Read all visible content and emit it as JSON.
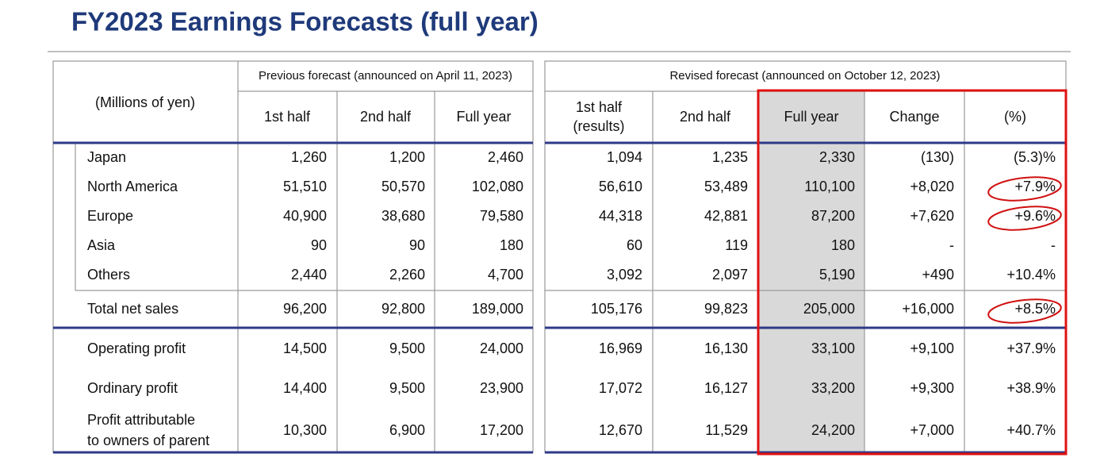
{
  "header": {
    "title": "FY2023 Earnings Forecasts (full year)"
  },
  "table": {
    "unit_label": "(Millions of yen)",
    "previous_label": "Previous forecast (announced on April 11, 2023)",
    "revised_label": "Revised forecast (announced on October 12, 2023)",
    "columns": [
      [
        "1st half"
      ],
      [
        "2nd half"
      ],
      [
        "Full year"
      ],
      [
        "1st half",
        "(results)"
      ],
      [
        "2nd half"
      ],
      [
        "Full year"
      ],
      [
        "Change"
      ],
      [
        "(%)"
      ]
    ],
    "rows": [
      {
        "label": [
          "Japan"
        ],
        "cells": [
          "1,260",
          "1,200",
          "2,460",
          "1,094",
          "1,235",
          "2,330",
          "(130)",
          "(5.3)%"
        ]
      },
      {
        "label": [
          "North America"
        ],
        "cells": [
          "51,510",
          "50,570",
          "102,080",
          "56,610",
          "53,489",
          "110,100",
          "+8,020",
          "+7.9%"
        ]
      },
      {
        "label": [
          "Europe"
        ],
        "cells": [
          "40,900",
          "38,680",
          "79,580",
          "44,318",
          "42,881",
          "87,200",
          "+7,620",
          "+9.6%"
        ]
      },
      {
        "label": [
          "Asia"
        ],
        "cells": [
          "90",
          "90",
          "180",
          "60",
          "119",
          "180",
          "-",
          "-"
        ]
      },
      {
        "label": [
          "Others"
        ],
        "cells": [
          "2,440",
          "2,260",
          "4,700",
          "3,092",
          "2,097",
          "5,190",
          "+490",
          "+10.4%"
        ]
      },
      {
        "label": [
          "Total net sales"
        ],
        "cells": [
          "96,200",
          "92,800",
          "189,000",
          "105,176",
          "99,823",
          "205,000",
          "+16,000",
          "+8.5%"
        ]
      },
      {
        "label": [
          "Operating profit"
        ],
        "cells": [
          "14,500",
          "9,500",
          "24,000",
          "16,969",
          "16,130",
          "33,100",
          "+9,100",
          "+37.9%"
        ]
      },
      {
        "label": [
          "Ordinary profit"
        ],
        "cells": [
          "14,400",
          "9,500",
          "23,900",
          "17,072",
          "16,127",
          "33,200",
          "+9,300",
          "+38.9%"
        ]
      },
      {
        "label": [
          "Profit attributable",
          "to owners of parent"
        ],
        "cells": [
          "10,300",
          "6,900",
          "17,200",
          "12,670",
          "11,529",
          "24,200",
          "+7,000",
          "+40.7%"
        ]
      }
    ]
  }
}
